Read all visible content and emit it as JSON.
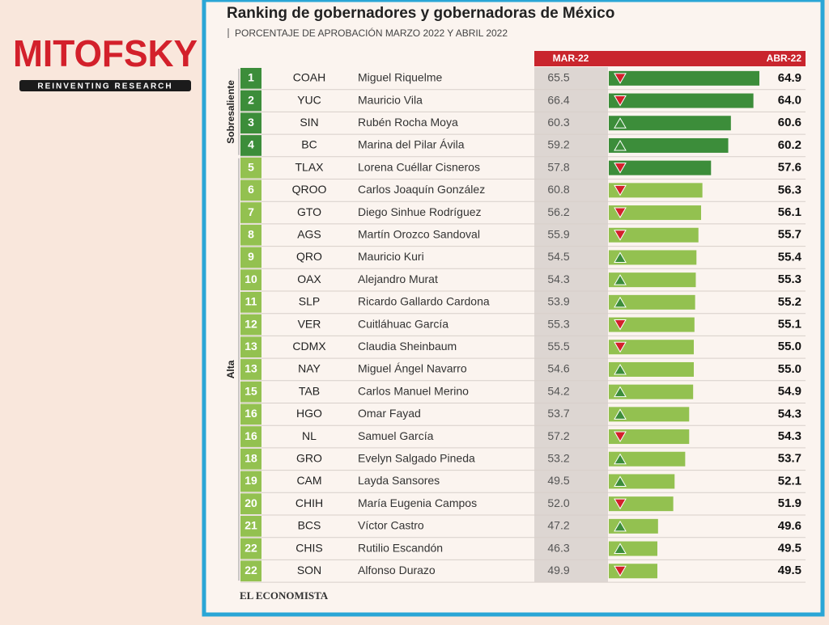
{
  "logo": {
    "name": "MITOFSKY",
    "tagline": "REINVENTING RESEARCH"
  },
  "header": {
    "title": "Ranking de gobernadores y gobernadoras de México",
    "subtitle": "PORCENTAJE DE APROBACIÓN MARZO 2022 Y ABRIL 2022"
  },
  "table": {
    "columns": [
      "MAR-22",
      "ABR-22"
    ],
    "groups": [
      {
        "label": "Sobresaliente",
        "rows": 4
      },
      {
        "label": "Alta",
        "rows": 19
      }
    ],
    "rows": [
      {
        "rank": 1,
        "state": "COAH",
        "name": "Miguel Riquelme",
        "mar": "65.5",
        "abr": "64.9",
        "color": "#3c8d3a"
      },
      {
        "rank": 2,
        "state": "YUC",
        "name": "Mauricio Vila",
        "mar": "66.4",
        "abr": "64.0",
        "color": "#3c8d3a"
      },
      {
        "rank": 3,
        "state": "SIN",
        "name": "Rubén Rocha Moya",
        "mar": "60.3",
        "abr": "60.6",
        "color": "#3c8d3a"
      },
      {
        "rank": 4,
        "state": "BC",
        "name": "Marina del Pilar Ávila",
        "mar": "59.2",
        "abr": "60.2",
        "color": "#3c8d3a"
      },
      {
        "rank": 5,
        "state": "TLAX",
        "name": "Lorena Cuéllar Cisneros",
        "mar": "57.8",
        "abr": "57.6",
        "color": "#3c8d3a"
      },
      {
        "rank": 6,
        "state": "QROO",
        "name": "Carlos Joaquín González",
        "mar": "60.8",
        "abr": "56.3",
        "color": "#93c150"
      },
      {
        "rank": 7,
        "state": "GTO",
        "name": "Diego Sinhue Rodríguez",
        "mar": "56.2",
        "abr": "56.1",
        "color": "#93c150"
      },
      {
        "rank": 8,
        "state": "AGS",
        "name": "Martín Orozco Sandoval",
        "mar": "55.9",
        "abr": "55.7",
        "color": "#93c150"
      },
      {
        "rank": 9,
        "state": "QRO",
        "name": "Mauricio Kuri",
        "mar": "54.5",
        "abr": "55.4",
        "color": "#93c150"
      },
      {
        "rank": 10,
        "state": "OAX",
        "name": "Alejandro Murat",
        "mar": "54.3",
        "abr": "55.3",
        "color": "#93c150"
      },
      {
        "rank": 11,
        "state": "SLP",
        "name": "Ricardo Gallardo Cardona",
        "mar": "53.9",
        "abr": "55.2",
        "color": "#93c150"
      },
      {
        "rank": 12,
        "state": "VER",
        "name": "Cuitláhuac García",
        "mar": "55.3",
        "abr": "55.1",
        "color": "#93c150"
      },
      {
        "rank": 13,
        "state": "CDMX",
        "name": "Claudia Sheinbaum",
        "mar": "55.5",
        "abr": "55.0",
        "color": "#93c150"
      },
      {
        "rank": 13,
        "state": "NAY",
        "name": "Miguel Ángel Navarro",
        "mar": "54.6",
        "abr": "55.0",
        "color": "#93c150"
      },
      {
        "rank": 15,
        "state": "TAB",
        "name": "Carlos Manuel Merino",
        "mar": "54.2",
        "abr": "54.9",
        "color": "#93c150"
      },
      {
        "rank": 16,
        "state": "HGO",
        "name": "Omar Fayad",
        "mar": "53.7",
        "abr": "54.3",
        "color": "#93c150"
      },
      {
        "rank": 16,
        "state": "NL",
        "name": "Samuel García",
        "mar": "57.2",
        "abr": "54.3",
        "color": "#93c150"
      },
      {
        "rank": 18,
        "state": "GRO",
        "name": "Evelyn Salgado Pineda",
        "mar": "53.2",
        "abr": "53.7",
        "color": "#93c150"
      },
      {
        "rank": 19,
        "state": "CAM",
        "name": "Layda Sansores",
        "mar": "49.5",
        "abr": "52.1",
        "color": "#93c150"
      },
      {
        "rank": 20,
        "state": "CHIH",
        "name": "María Eugenia Campos",
        "mar": "52.0",
        "abr": "51.9",
        "color": "#93c150"
      },
      {
        "rank": 21,
        "state": "BCS",
        "name": "Víctor Castro",
        "mar": "47.2",
        "abr": "49.6",
        "color": "#93c150"
      },
      {
        "rank": 22,
        "state": "CHIS",
        "name": "Rutilio Escandón",
        "mar": "46.3",
        "abr": "49.5",
        "color": "#93c150"
      },
      {
        "rank": 22,
        "state": "SON",
        "name": "Alfonso Durazo",
        "mar": "49.9",
        "abr": "49.5",
        "color": "#93c150"
      }
    ]
  },
  "footer": {
    "source": "EL ECONOMISTA"
  }
}
